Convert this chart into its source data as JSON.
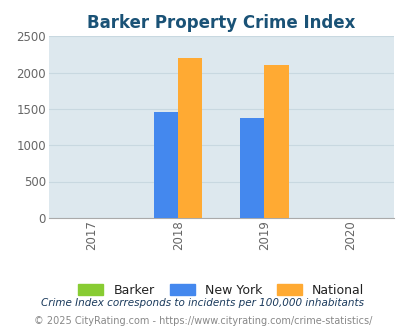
{
  "title": "Barker Property Crime Index",
  "title_color": "#1a5276",
  "bar_groups": {
    "2018": {
      "Barker": null,
      "New York": 1460,
      "National": 2200
    },
    "2019": {
      "Barker": null,
      "New York": 1370,
      "National": 2100
    }
  },
  "bar_colors": {
    "Barker": "#88cc33",
    "New York": "#4488ee",
    "National": "#ffaa33"
  },
  "legend_labels": [
    "Barker",
    "New York",
    "National"
  ],
  "xlim": [
    2016.5,
    2020.5
  ],
  "ylim": [
    0,
    2500
  ],
  "yticks": [
    0,
    500,
    1000,
    1500,
    2000,
    2500
  ],
  "xticks": [
    2017,
    2018,
    2019,
    2020
  ],
  "plot_bg_color": "#dde8ee",
  "grid_color": "#c8d8e0",
  "footer_note": "Crime Index corresponds to incidents per 100,000 inhabitants",
  "footer_url": "© 2025 CityRating.com - https://www.cityrating.com/crime-statistics/",
  "bar_width": 0.28
}
